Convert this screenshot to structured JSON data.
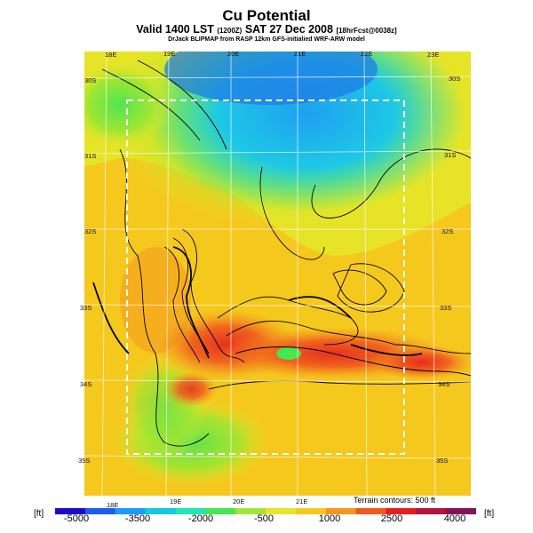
{
  "header": {
    "title": "Cu Potential",
    "subtitle_main": "Valid 1400 LST",
    "subtitle_time_small": "(1200Z)",
    "subtitle_date": "SAT 27 Dec 2008",
    "subtitle_forecast_small": "[18hrFcst@0038z]",
    "source_line": "DrJack BLIPMAP from RASP 12km GFS-initialied WRF-ARW model"
  },
  "map": {
    "longitude_labels_top": [
      "18E",
      "19E",
      "20E",
      "21E",
      "22E",
      "23E"
    ],
    "longitude_labels_bottom": [
      "18E",
      "19E",
      "20E",
      "21E"
    ],
    "latitude_labels_left": [
      "30S",
      "31S",
      "32S",
      "33S",
      "34S",
      "35S"
    ],
    "latitude_labels_right": [
      "30S",
      "31S",
      "32S",
      "33S",
      "34S",
      "35S"
    ],
    "terrain_note": "Terrain contours: 500 ft"
  },
  "colorbar": {
    "unit_left": "[ft]",
    "unit_right": "[ft]",
    "tick_labels": [
      "-5000",
      "-3500",
      "-2000",
      "-500",
      "1000",
      "2500",
      "4000"
    ],
    "colors": [
      "#1a0cc8",
      "#1e5cf0",
      "#1a9cf5",
      "#14c8e0",
      "#1ee6b4",
      "#46e650",
      "#a0e632",
      "#e6e628",
      "#f5c81e",
      "#f5961e",
      "#f05a1e",
      "#e61e1e",
      "#b4143c",
      "#82145a"
    ]
  }
}
